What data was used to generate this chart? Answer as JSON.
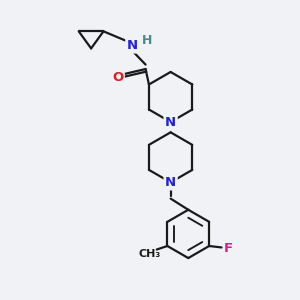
{
  "bg_color": "#f0f2f5",
  "bond_color": "#1a1a1a",
  "N_color": "#2020dd",
  "O_color": "#dd2020",
  "F_color": "#cc2299",
  "H_color": "#4a8a8a",
  "line_width": 1.6,
  "figsize": [
    3.0,
    3.0
  ],
  "dpi": 100,
  "xlim": [
    0,
    10
  ],
  "ylim": [
    0,
    10
  ]
}
